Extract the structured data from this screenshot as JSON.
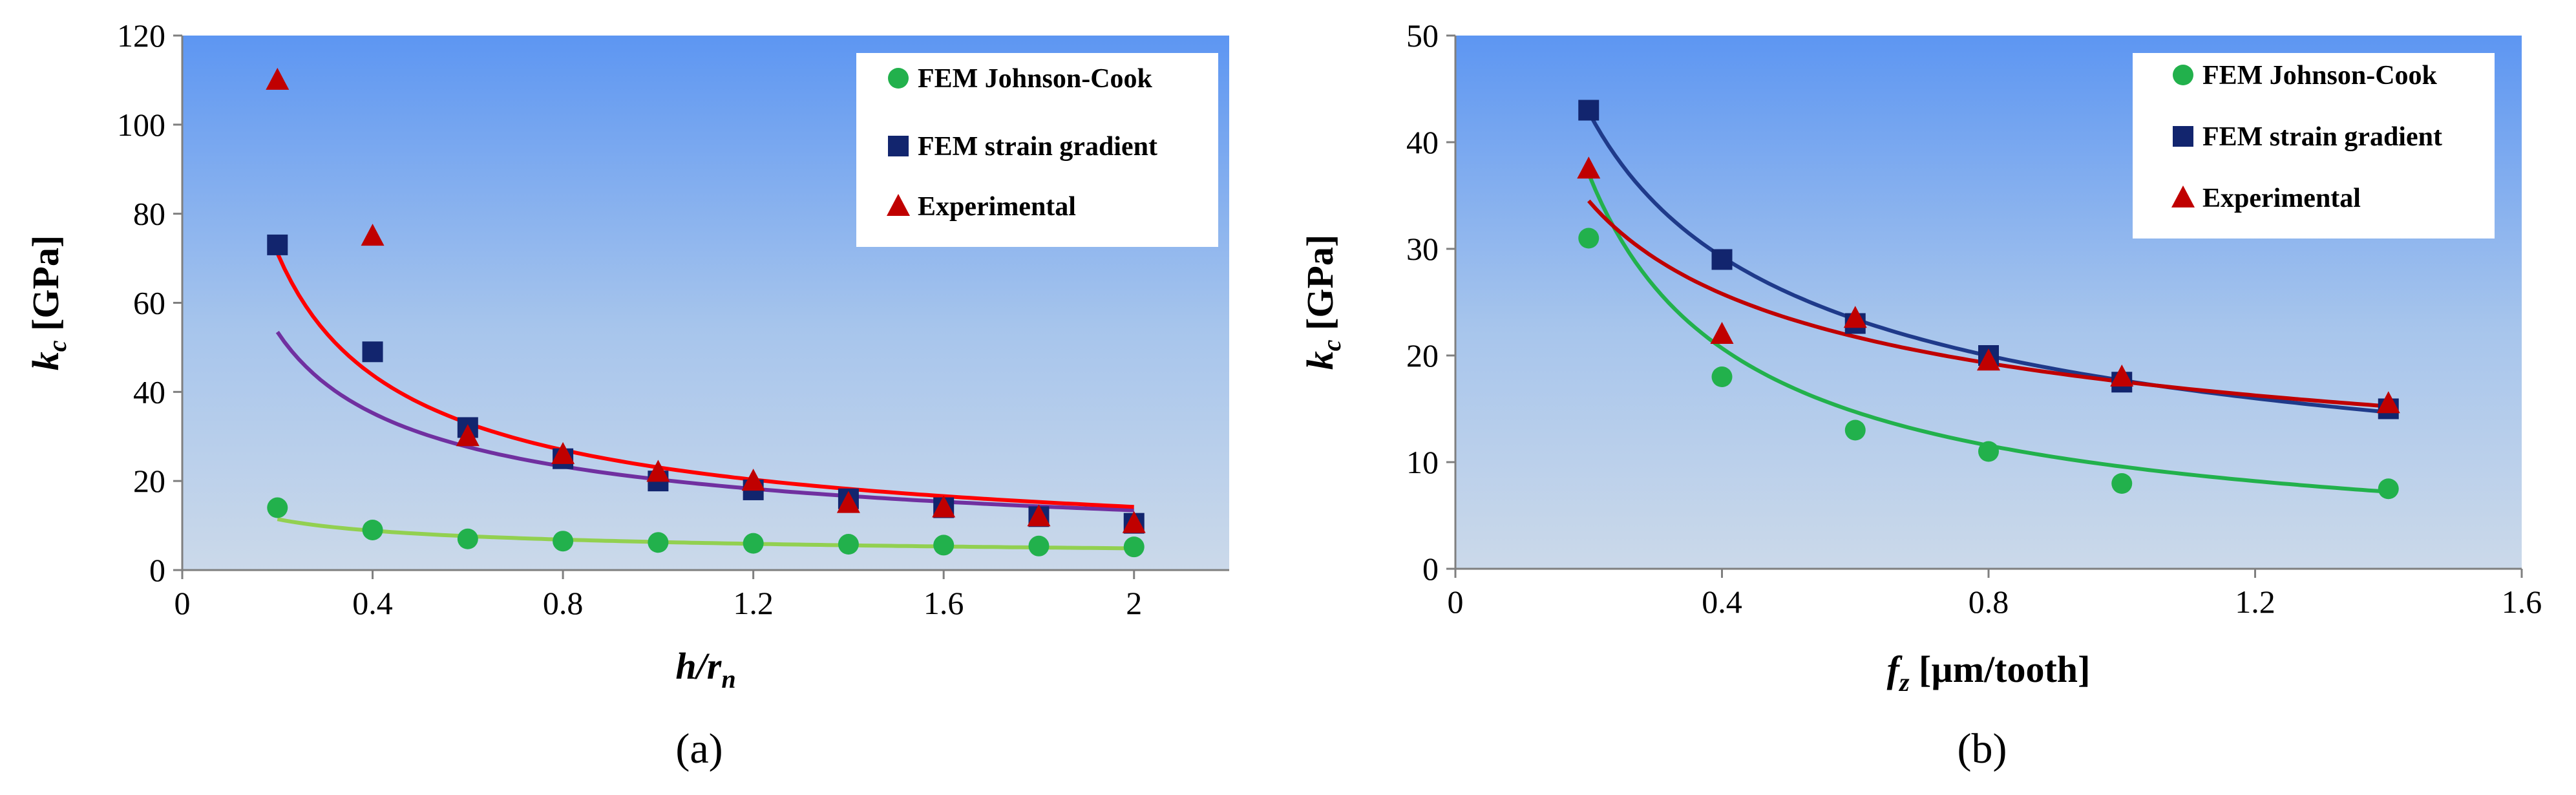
{
  "chart_data": [
    {
      "type": "scatter",
      "panel_label": "(a)",
      "ylabel": "k",
      "ylabel_sub": "c",
      "ylabel_rest": " [GPa]",
      "xlabel": "h/r",
      "xlabel_sub": "n",
      "xlim": [
        0,
        2.2
      ],
      "ylim": [
        0,
        120
      ],
      "xticks": [
        "0",
        "0.4",
        "0.8",
        "1.2",
        "1.6",
        "2"
      ],
      "xtick_values": [
        0,
        0.4,
        0.8,
        1.2,
        1.6,
        2.0
      ],
      "yticks": [
        "0",
        "20",
        "40",
        "60",
        "80",
        "100",
        "120"
      ],
      "ytick_values": [
        0,
        20,
        40,
        60,
        80,
        100,
        120
      ],
      "legend_position": "top-right",
      "series": [
        {
          "name": "FEM Johnson-Cook",
          "marker": "circle",
          "color": "#22b14c",
          "trend_color": "#92d050",
          "x": [
            0.2,
            0.4,
            0.6,
            0.8,
            1.0,
            1.2,
            1.4,
            1.6,
            1.8,
            2.0
          ],
          "y": [
            14,
            9,
            7,
            6.5,
            6.2,
            6,
            5.8,
            5.6,
            5.4,
            5.2
          ],
          "trend": {
            "type": "power",
            "a": 6.3,
            "b": -0.37
          }
        },
        {
          "name": "FEM strain gradient",
          "marker": "square",
          "color": "#12256e",
          "trend_color": "#7030a0",
          "x": [
            0.2,
            0.4,
            0.6,
            0.8,
            1.0,
            1.2,
            1.4,
            1.6,
            1.8,
            2.0
          ],
          "y": [
            73,
            49,
            32,
            25,
            20,
            18,
            16,
            14,
            12,
            10.5
          ],
          "trend": {
            "type": "power",
            "a": 20.35,
            "b": -0.6
          }
        },
        {
          "name": "Experimental",
          "marker": "triangle",
          "color": "#c00000",
          "trend_color": "#ff0000",
          "x": [
            0.2,
            0.4,
            0.6,
            0.8,
            1.0,
            1.2,
            1.4,
            1.6,
            1.8,
            2.0
          ],
          "y": [
            110,
            75,
            30,
            26,
            22,
            20,
            15,
            14,
            12,
            10.5
          ],
          "trend": {
            "type": "power",
            "a": 23.06,
            "b": -0.7
          }
        }
      ]
    },
    {
      "type": "scatter",
      "panel_label": "(b)",
      "ylabel": "k",
      "ylabel_sub": "c",
      "ylabel_rest": " [GPa]",
      "xlabel": "f",
      "xlabel_sub": "z",
      "xlabel_rest": " [µm/tooth]",
      "xlim": [
        0,
        1.6
      ],
      "ylim": [
        0,
        50
      ],
      "xticks": [
        "0",
        "0.4",
        "0.8",
        "1.2",
        "1.6"
      ],
      "xtick_values": [
        0,
        0.4,
        0.8,
        1.2,
        1.6
      ],
      "yticks": [
        "0",
        "10",
        "20",
        "30",
        "40",
        "50"
      ],
      "ytick_values": [
        0,
        10,
        20,
        30,
        40,
        50
      ],
      "legend_position": "top-right",
      "series": [
        {
          "name": "FEM Johnson-Cook",
          "marker": "circle",
          "color": "#22b14c",
          "trend_color": "#22b14c",
          "x": [
            0.2,
            0.4,
            0.6,
            0.8,
            1.0,
            1.4
          ],
          "y": [
            31,
            18,
            13,
            11,
            8,
            7.5
          ],
          "trend": {
            "type": "power",
            "a": 9.58,
            "b": -0.84
          }
        },
        {
          "name": "FEM strain gradient",
          "marker": "square",
          "color": "#12256e",
          "trend_color": "#1f3a8a",
          "x": [
            0.2,
            0.4,
            0.6,
            0.8,
            1.0,
            1.4
          ],
          "y": [
            43,
            29,
            23,
            20,
            17.5,
            15
          ],
          "trend": {
            "type": "power",
            "a": 17.67,
            "b": -0.55
          }
        },
        {
          "name": "Experimental",
          "marker": "triangle",
          "color": "#c00000",
          "trend_color": "#c00000",
          "x": [
            0.2,
            0.4,
            0.6,
            0.8,
            1.0,
            1.4
          ],
          "y": [
            37.5,
            22,
            23.5,
            19.5,
            18,
            15.5
          ],
          "trend": {
            "type": "power",
            "a": 17.55,
            "b": -0.42
          }
        }
      ]
    }
  ]
}
